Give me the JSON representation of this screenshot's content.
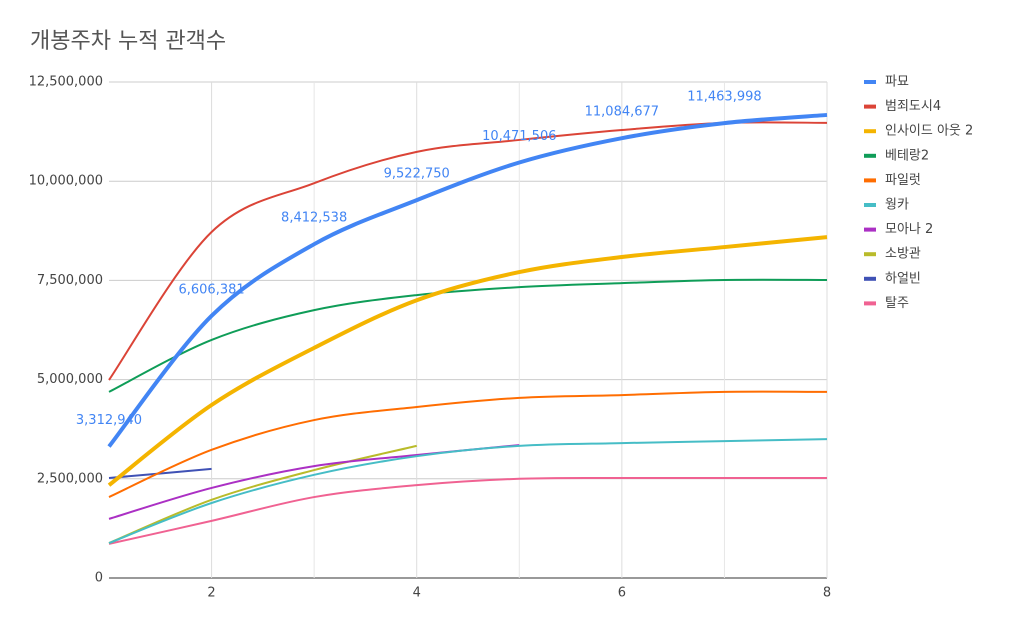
{
  "chart_data": {
    "type": "line",
    "title": "개봉주차 누적 관객수",
    "x": [
      1,
      2,
      3,
      4,
      5,
      6,
      7,
      8
    ],
    "xlim": [
      1,
      8
    ],
    "xticks": [
      2,
      4,
      6,
      8
    ],
    "minor_grid": true,
    "ylim": [
      0,
      12500000
    ],
    "yticks": [
      0,
      {
        "value": 2500000,
        "label": "2,500,000"
      },
      {
        "value": 5000000,
        "label": "5,000,000"
      },
      {
        "value": 7500000,
        "label": "7,500,000"
      },
      {
        "value": 10000000,
        "label": "10,000,000"
      },
      {
        "value": 12500000,
        "label": "12,500,000"
      }
    ],
    "grid": true,
    "smooth": true,
    "legend": "right",
    "series": [
      {
        "name": "파묘",
        "color": "#4285f4",
        "width": 4,
        "values": [
          3312940,
          6606381,
          8412538,
          9522750,
          10471506,
          11084677,
          11463998,
          11670000
        ],
        "value_labels": [
          "3,312,940",
          "6,606,381",
          "8,412,538",
          "9,522,750",
          "10,471,506",
          "11,084,677",
          "11,463,998",
          null
        ]
      },
      {
        "name": "범죄도시4",
        "color": "#db4437",
        "width": 2,
        "values": [
          4990000,
          8720000,
          9950000,
          10740000,
          11040000,
          11290000,
          11470000,
          11470000
        ]
      },
      {
        "name": "인사이드 아웃 2",
        "color": "#f4b400",
        "width": 4,
        "values": [
          2340000,
          4360000,
          5800000,
          7000000,
          7710000,
          8090000,
          8340000,
          8590000
        ]
      },
      {
        "name": "베테랑2",
        "color": "#0f9d58",
        "width": 2,
        "values": [
          4690000,
          6000000,
          6750000,
          7130000,
          7330000,
          7430000,
          7510000,
          7510000
        ]
      },
      {
        "name": "파일럿",
        "color": "#ff6d01",
        "width": 2,
        "values": [
          2040000,
          3230000,
          3980000,
          4310000,
          4540000,
          4610000,
          4690000,
          4690000
        ]
      },
      {
        "name": "웡카",
        "color": "#46bdc6",
        "width": 2,
        "values": [
          880000,
          1890000,
          2600000,
          3070000,
          3330000,
          3400000,
          3450000,
          3500000
        ]
      },
      {
        "name": "모아나 2",
        "color": "#ab30c4",
        "width": 2,
        "values": [
          1490000,
          2270000,
          2820000,
          3100000,
          3350000,
          null,
          null,
          null
        ]
      },
      {
        "name": "소방관",
        "color": "#b9bb2a",
        "width": 2,
        "values": [
          880000,
          1970000,
          2720000,
          3330000,
          null,
          null,
          null,
          null
        ]
      },
      {
        "name": "하얼빈",
        "color": "#3f51b5",
        "width": 2,
        "values": [
          2520000,
          2750000,
          null,
          null,
          null,
          null,
          null,
          null
        ]
      },
      {
        "name": "탈주",
        "color": "#f06292",
        "width": 2,
        "values": [
          860000,
          1440000,
          2040000,
          2340000,
          2500000,
          2520000,
          2520000,
          2520000
        ]
      }
    ]
  }
}
